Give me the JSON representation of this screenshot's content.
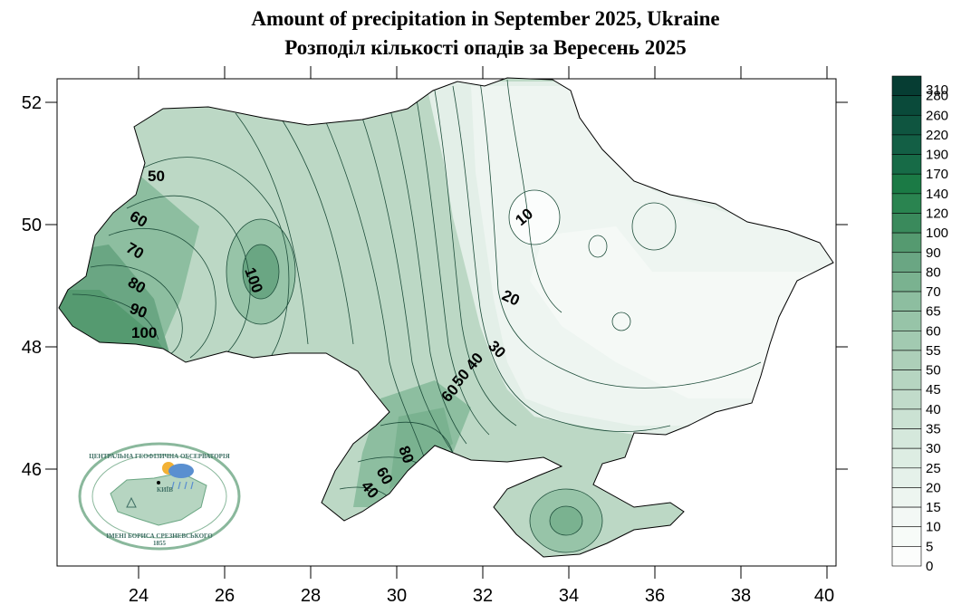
{
  "title_en": "Amount of precipitation in September 2025, Ukraine",
  "title_ua": "Розподіл кількості опадів за Вересень 2025",
  "x_ticks": [
    "24",
    "26",
    "28",
    "30",
    "32",
    "34",
    "36",
    "38",
    "40"
  ],
  "y_ticks": [
    "52",
    "50",
    "48",
    "46"
  ],
  "legend": {
    "levels": [
      "310",
      "280",
      "260",
      "220",
      "190",
      "170",
      "140",
      "120",
      "100",
      "90",
      "80",
      "70",
      "65",
      "60",
      "55",
      "50",
      "45",
      "40",
      "35",
      "30",
      "25",
      "20",
      "15",
      "10",
      "5",
      "0"
    ],
    "colors": [
      "#063d33",
      "#0a4a3a",
      "#0f5540",
      "#135f45",
      "#176b47",
      "#1b7a45",
      "#2a8450",
      "#3a8a5c",
      "#559a70",
      "#6aa683",
      "#7ab290",
      "#8dbea0",
      "#97c4a8",
      "#a2cab1",
      "#adcfb9",
      "#b6d5c1",
      "#c1dbca",
      "#cbe2d3",
      "#d5e8dc",
      "#ddede3",
      "#e5f1ea",
      "#edf5f0",
      "#f3f8f5",
      "#f7fbf8",
      "#fcfdfc"
    ]
  },
  "contour_labels": [
    "50",
    "60",
    "70",
    "80",
    "90",
    "100",
    "100",
    "10",
    "20",
    "30",
    "40",
    "50",
    "60",
    "80",
    "60",
    "40"
  ],
  "logo": {
    "top_text": "ЦЕНТРАЛЬНА ГЕОФІЗИЧНА ОБСЕРВАТОРІЯ",
    "bottom_text": "ІМЕНІ БОРИСА СРЕЗНЕВСЬКОГО",
    "city": "КИЇВ",
    "year": "1855"
  }
}
